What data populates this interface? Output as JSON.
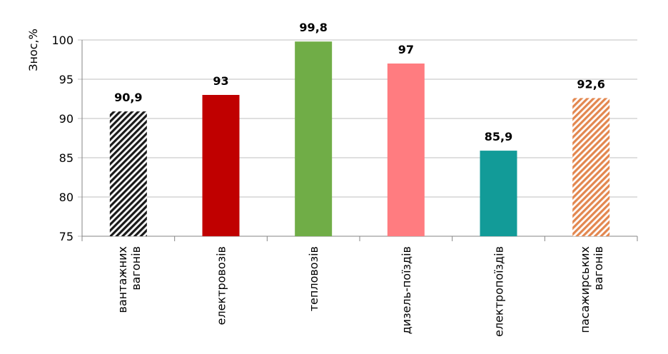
{
  "chart_data": {
    "type": "bar",
    "y_label": "Знос,%",
    "categories": [
      "вантажних вагонів",
      "електровозів",
      "тепловозів",
      "дизель-поїздів",
      "електропоїздів",
      "пасажирських вагонів"
    ],
    "values": [
      90.9,
      93,
      99.8,
      97,
      85.9,
      92.6
    ],
    "value_labels": [
      "90,9",
      "93",
      "99,8",
      "97",
      "85,9",
      "92,6"
    ],
    "colors": [
      "#1a1a1a",
      "#c00000",
      "#70ad47",
      "#ff7c80",
      "#129b98",
      "#e3874f"
    ],
    "hatched": [
      true,
      false,
      false,
      false,
      false,
      true
    ],
    "ylim": [
      75,
      100
    ],
    "yticks": [
      75,
      80,
      85,
      90,
      95,
      100
    ],
    "grid": true
  }
}
